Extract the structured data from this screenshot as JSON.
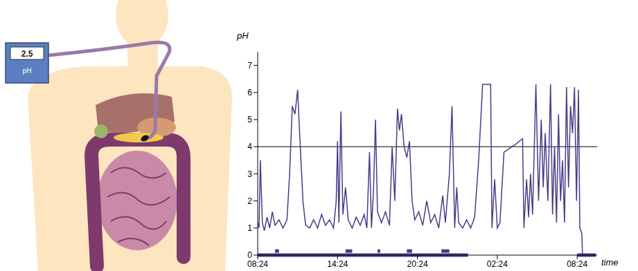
{
  "illustration": {
    "reading": 2.5,
    "label": "pH"
  },
  "chart_data": {
    "type": "line",
    "y_label": "pH",
    "x_label": "time",
    "color": "#4a3a8a",
    "xlim": [
      0,
      25.5
    ],
    "xticks": [
      {
        "value": 0,
        "label": "08:24"
      },
      {
        "value": 6,
        "label": "14:24"
      },
      {
        "value": 12,
        "label": "20:24"
      },
      {
        "value": 18,
        "label": "02:24"
      },
      {
        "value": 24,
        "label": "08:24"
      }
    ],
    "ylim": [
      0,
      7.5
    ],
    "yticks": [
      0,
      1,
      2,
      3,
      4,
      5,
      6,
      7
    ],
    "grid": false,
    "reference_line": 4,
    "x": [
      0,
      0.1,
      0.2,
      0.35,
      0.5,
      0.7,
      0.9,
      1.1,
      1.3,
      1.6,
      1.9,
      2.2,
      2.4,
      2.6,
      2.8,
      3.0,
      3.2,
      3.4,
      3.6,
      3.9,
      4.2,
      4.5,
      4.8,
      5.1,
      5.4,
      5.7,
      5.9,
      6.0,
      6.1,
      6.25,
      6.4,
      6.6,
      6.8,
      7.1,
      7.4,
      7.7,
      8.0,
      8.2,
      8.4,
      8.55,
      8.7,
      8.85,
      9.0,
      9.3,
      9.6,
      9.9,
      10.1,
      10.3,
      10.5,
      10.65,
      10.8,
      11.0,
      11.2,
      11.4,
      11.6,
      11.8,
      12.1,
      12.4,
      12.7,
      13.0,
      13.3,
      13.6,
      13.9,
      14.1,
      14.4,
      14.6,
      14.8,
      14.95,
      15.1,
      15.4,
      15.7,
      16.0,
      16.3,
      16.6,
      16.9,
      17.5,
      17.6,
      17.8,
      18.0,
      18.2,
      18.5,
      19.4,
      19.9,
      20.0,
      20.2,
      20.35,
      20.5,
      20.65,
      20.9,
      21.1,
      21.3,
      21.45,
      21.6,
      21.8,
      22.0,
      22.15,
      22.3,
      22.45,
      22.6,
      22.75,
      22.9,
      23.05,
      23.2,
      23.35,
      23.5,
      23.65,
      23.8,
      23.95,
      24.1,
      24.2,
      24.35,
      24.4,
      25.4
    ],
    "values": [
      1.2,
      1.0,
      3.5,
      1.2,
      0.9,
      1.4,
      1.0,
      1.6,
      1.1,
      1.3,
      1.0,
      1.3,
      3.0,
      5.5,
      5.2,
      6.1,
      4.0,
      2.0,
      1.1,
      1.0,
      1.3,
      1.0,
      1.5,
      1.1,
      1.3,
      1.0,
      2.0,
      4.2,
      1.2,
      5.3,
      1.5,
      2.5,
      1.3,
      1.0,
      1.4,
      1.1,
      1.5,
      1.0,
      3.8,
      1.0,
      2.4,
      5.0,
      1.6,
      1.2,
      1.6,
      1.1,
      4.0,
      2.0,
      5.4,
      4.6,
      5.2,
      4.0,
      3.6,
      4.2,
      2.0,
      1.3,
      1.6,
      1.1,
      2.0,
      1.2,
      1.5,
      1.0,
      2.2,
      1.2,
      3.0,
      5.5,
      1.0,
      2.5,
      1.2,
      1.0,
      1.3,
      1.0,
      1.4,
      3.5,
      6.3,
      6.3,
      1.0,
      2.8,
      1.0,
      1.2,
      3.8,
      4.1,
      4.3,
      1.0,
      2.8,
      1.4,
      3.0,
      1.5,
      6.3,
      2.0,
      5.0,
      2.5,
      4.5,
      2.0,
      6.3,
      1.5,
      4.0,
      1.2,
      5.2,
      2.0,
      3.5,
      1.2,
      6.2,
      2.5,
      5.5,
      4.5,
      6.2,
      2.0,
      6.1,
      1.0,
      0.8,
      0.0,
      0.0
    ],
    "periods": [
      {
        "y": 0.15,
        "from": 1.3,
        "to": 1.6
      },
      {
        "y": 0.15,
        "from": 6.6,
        "to": 7.1
      },
      {
        "y": 0.15,
        "from": 9.0,
        "to": 9.2
      },
      {
        "y": 0.15,
        "from": 11.2,
        "to": 11.6
      },
      {
        "y": 0.15,
        "from": 13.8,
        "to": 14.4
      },
      {
        "y": 0,
        "from": 0,
        "to": 15.8
      },
      {
        "y": 0,
        "from": 24,
        "to": 25.4
      }
    ]
  }
}
